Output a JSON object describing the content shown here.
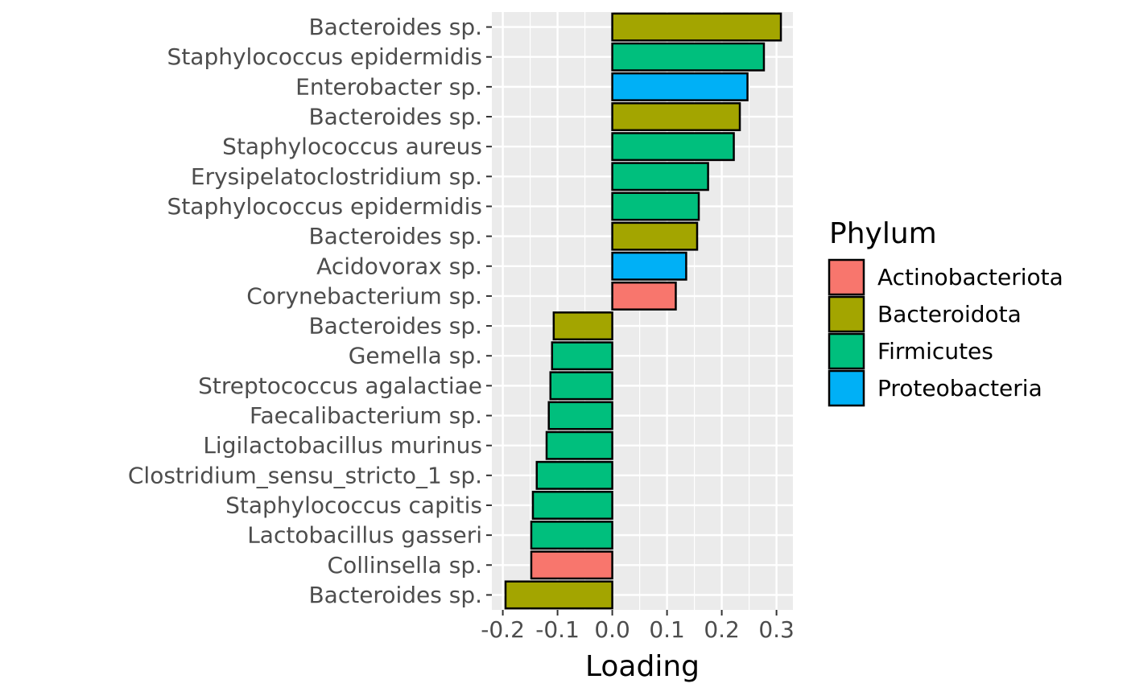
{
  "chart_data": {
    "type": "bar",
    "orientation": "horizontal",
    "title": "",
    "xlabel": "Loading",
    "ylabel": "",
    "xlim": [
      -0.22,
      0.33
    ],
    "x_ticks": [
      -0.2,
      -0.1,
      0.0,
      0.1,
      0.2,
      0.3
    ],
    "x_tick_labels": [
      "-0.2",
      "-0.1",
      "0.0",
      "0.1",
      "0.2",
      "0.3"
    ],
    "grid": true,
    "legend_title": "Phylum",
    "legend_position": "right",
    "legend": [
      {
        "name": "Actinobacteriota",
        "color": "#F8766D"
      },
      {
        "name": "Bacteroidota",
        "color": "#A3A500"
      },
      {
        "name": "Firmicutes",
        "color": "#00BF7D"
      },
      {
        "name": "Proteobacteria",
        "color": "#00B0F6"
      }
    ],
    "bars": [
      {
        "label": "Bacteroides sp.",
        "value": 0.308,
        "phylum": "Bacteroidota"
      },
      {
        "label": "Staphylococcus epidermidis",
        "value": 0.277,
        "phylum": "Firmicutes"
      },
      {
        "label": "Enterobacter sp.",
        "value": 0.247,
        "phylum": "Proteobacteria"
      },
      {
        "label": "Bacteroides sp.",
        "value": 0.233,
        "phylum": "Bacteroidota"
      },
      {
        "label": "Staphylococcus aureus",
        "value": 0.222,
        "phylum": "Firmicutes"
      },
      {
        "label": "Erysipelatoclostridium sp.",
        "value": 0.175,
        "phylum": "Firmicutes"
      },
      {
        "label": "Staphylococcus epidermidis",
        "value": 0.158,
        "phylum": "Firmicutes"
      },
      {
        "label": "Bacteroides sp.",
        "value": 0.155,
        "phylum": "Bacteroidota"
      },
      {
        "label": "Acidovorax sp.",
        "value": 0.135,
        "phylum": "Proteobacteria"
      },
      {
        "label": "Corynebacterium sp.",
        "value": 0.116,
        "phylum": "Actinobacteriota"
      },
      {
        "label": "Bacteroides sp.",
        "value": -0.107,
        "phylum": "Bacteroidota"
      },
      {
        "label": "Gemella sp.",
        "value": -0.11,
        "phylum": "Firmicutes"
      },
      {
        "label": "Streptococcus agalactiae",
        "value": -0.113,
        "phylum": "Firmicutes"
      },
      {
        "label": "Faecalibacterium sp.",
        "value": -0.116,
        "phylum": "Firmicutes"
      },
      {
        "label": "Ligilactobacillus murinus",
        "value": -0.12,
        "phylum": "Firmicutes"
      },
      {
        "label": "Clostridium_sensu_stricto_1 sp.",
        "value": -0.138,
        "phylum": "Firmicutes"
      },
      {
        "label": "Staphylococcus capitis",
        "value": -0.145,
        "phylum": "Firmicutes"
      },
      {
        "label": "Lactobacillus gasseri",
        "value": -0.148,
        "phylum": "Firmicutes"
      },
      {
        "label": "Collinsella sp.",
        "value": -0.148,
        "phylum": "Actinobacteriota"
      },
      {
        "label": "Bacteroides sp.",
        "value": -0.195,
        "phylum": "Bacteroidota"
      }
    ]
  }
}
